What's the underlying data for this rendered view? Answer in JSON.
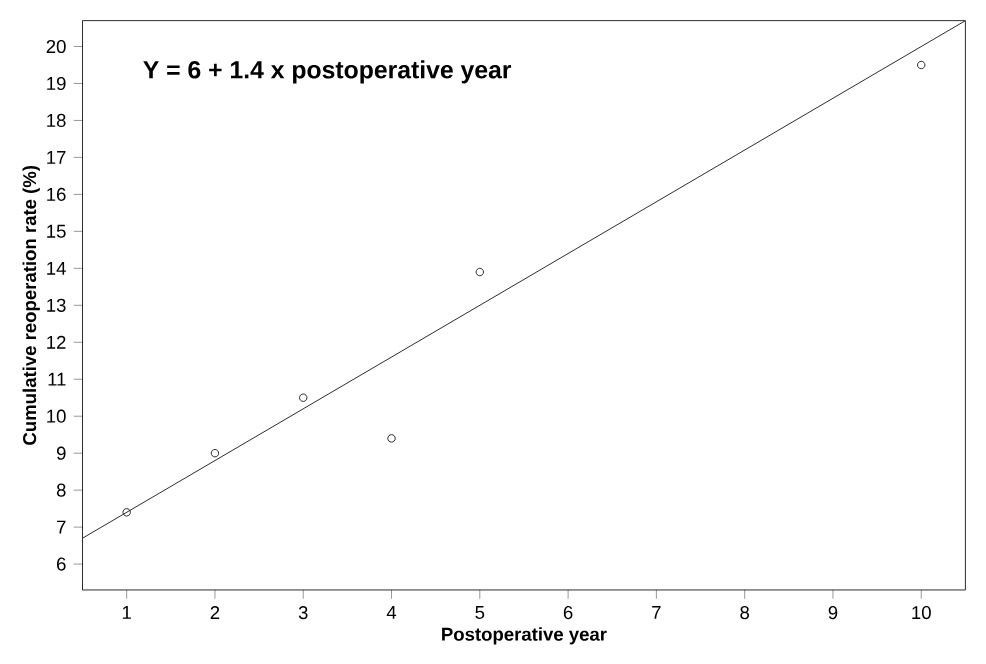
{
  "chart_data": {
    "type": "scatter",
    "xlabel": "Postoperative year",
    "ylabel": "Cumulative reoperation rate (%)",
    "annotations": [
      "Y = 6 + 1.4 x postoperative year"
    ],
    "x": [
      1,
      2,
      3,
      4,
      5,
      10
    ],
    "series": [
      {
        "color": "#000000",
        "marker": "circle",
        "values": [
          7.4,
          9.0,
          10.5,
          9.4,
          13.9,
          19.5
        ]
      },
      {
        "type": "line",
        "color": "#000000",
        "marker": "none",
        "x": [
          0.5,
          10.5
        ],
        "values": [
          6.7,
          20.7
        ]
      }
    ],
    "xlim": [
      0.5,
      10.5
    ],
    "ylim": [
      5.3,
      20.7
    ],
    "xticks": [
      1,
      2,
      3,
      4,
      5,
      6,
      7,
      8,
      9,
      10
    ],
    "yticks": [
      6,
      7,
      8,
      9,
      10,
      11,
      12,
      13,
      14,
      15,
      16,
      17,
      18,
      19,
      20
    ],
    "grid": false
  }
}
